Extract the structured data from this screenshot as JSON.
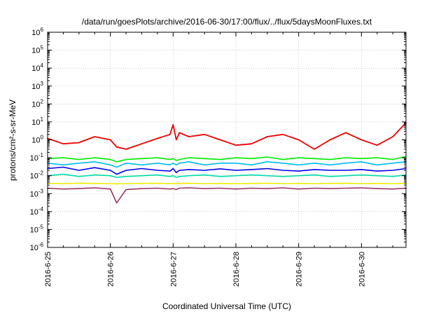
{
  "chart_data": {
    "type": "line",
    "title": "/data/run/goesPlots/archive/2016-06-30/17:00/flux/../flux/5daysMoonFluxes.txt",
    "xlabel": "Coordinated Universal Time (UTC)",
    "ylabel": "protons/cm²-s-sr-MeV",
    "yscale": "log",
    "ylim": [
      1e-06,
      1000000.0
    ],
    "xlim": [
      "2016-06-25 00:00",
      "2016-06-30 17:00"
    ],
    "x_tick_labels": [
      "2016-6-25",
      "2016-6-26",
      "2016-6-27",
      "2016-6-28",
      "2016-6-29",
      "2016-6-30"
    ],
    "y_tick_labels": [
      "10-6",
      "10-5",
      "10-4",
      "10-3",
      "10-2",
      "10-1",
      "100",
      "101",
      "102",
      "103",
      "104",
      "105",
      "106"
    ],
    "grid": true,
    "legend": "none",
    "x_days": [
      0,
      0.25,
      0.5,
      0.75,
      1.0,
      1.1,
      1.25,
      1.5,
      1.75,
      1.95,
      2.0,
      2.05,
      2.1,
      2.25,
      2.5,
      2.75,
      3.0,
      3.25,
      3.5,
      3.75,
      4.0,
      4.25,
      4.5,
      4.75,
      5.0,
      5.25,
      5.5,
      5.71
    ],
    "series": [
      {
        "color": "#ee0000",
        "values": [
          1.2,
          0.6,
          0.7,
          1.5,
          1.0,
          0.4,
          0.3,
          0.6,
          1.2,
          2.0,
          7.0,
          1.0,
          2.5,
          1.5,
          2.0,
          1.0,
          0.5,
          0.6,
          1.5,
          2.0,
          1.0,
          0.3,
          1.0,
          2.5,
          1.0,
          0.5,
          1.5,
          9.0
        ]
      },
      {
        "color": "#00ee00",
        "values": [
          0.09,
          0.1,
          0.08,
          0.1,
          0.08,
          0.06,
          0.08,
          0.09,
          0.1,
          0.08,
          0.09,
          0.07,
          0.08,
          0.1,
          0.09,
          0.08,
          0.1,
          0.09,
          0.11,
          0.08,
          0.1,
          0.09,
          0.08,
          0.1,
          0.09,
          0.1,
          0.08,
          0.12
        ]
      },
      {
        "color": "#00bbee",
        "values": [
          0.05,
          0.04,
          0.05,
          0.06,
          0.04,
          0.03,
          0.05,
          0.04,
          0.05,
          0.04,
          0.05,
          0.04,
          0.05,
          0.06,
          0.04,
          0.05,
          0.05,
          0.04,
          0.06,
          0.05,
          0.04,
          0.05,
          0.04,
          0.05,
          0.06,
          0.04,
          0.05,
          0.06
        ]
      },
      {
        "color": "#0000ee",
        "values": [
          0.025,
          0.03,
          0.02,
          0.028,
          0.02,
          0.012,
          0.02,
          0.025,
          0.02,
          0.018,
          0.025,
          0.015,
          0.02,
          0.022,
          0.02,
          0.024,
          0.02,
          0.022,
          0.025,
          0.02,
          0.018,
          0.022,
          0.02,
          0.02,
          0.022,
          0.018,
          0.02,
          0.025
        ]
      },
      {
        "color": "#00ddaa",
        "values": [
          0.01,
          0.012,
          0.009,
          0.011,
          0.01,
          0.008,
          0.009,
          0.01,
          0.011,
          0.009,
          0.01,
          0.008,
          0.009,
          0.01,
          0.011,
          0.009,
          0.01,
          0.011,
          0.01,
          0.009,
          0.01,
          0.011,
          0.009,
          0.01,
          0.011,
          0.01,
          0.009,
          0.011
        ]
      },
      {
        "color": "#eeee00",
        "values": [
          0.0038,
          0.0036,
          0.0038,
          0.0037,
          0.0036,
          0.0035,
          0.0036,
          0.0037,
          0.0038,
          0.0036,
          0.0037,
          0.0036,
          0.0037,
          0.0038,
          0.0036,
          0.0037,
          0.0036,
          0.0037,
          0.0038,
          0.0036,
          0.0037,
          0.0036,
          0.0037,
          0.0038,
          0.0036,
          0.0037,
          0.0036,
          0.0037
        ]
      },
      {
        "color": "#993366",
        "values": [
          0.002,
          0.0018,
          0.0019,
          0.0021,
          0.0018,
          0.0003,
          0.0017,
          0.0019,
          0.002,
          0.0018,
          0.0019,
          0.0017,
          0.002,
          0.0021,
          0.0019,
          0.002,
          0.0018,
          0.002,
          0.0019,
          0.0021,
          0.0018,
          0.002,
          0.0019,
          0.002,
          0.0021,
          0.0019,
          0.0018,
          0.002
        ]
      }
    ]
  }
}
